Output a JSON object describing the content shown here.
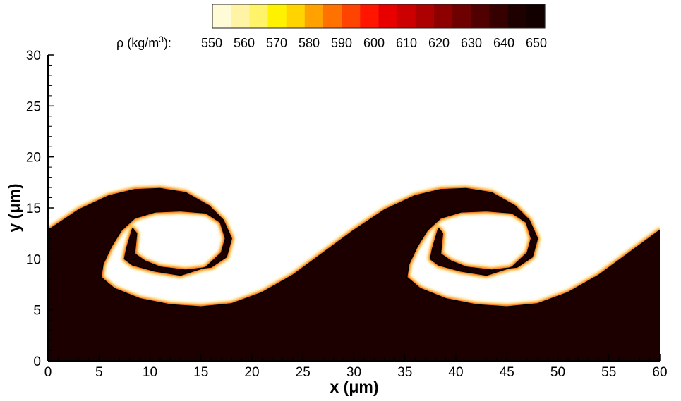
{
  "chart_data": {
    "type": "heatmap",
    "xlabel": "x (μm)",
    "ylabel": "y (μm)",
    "xlim": [
      0,
      60
    ],
    "ylim": [
      0,
      30
    ],
    "x_ticks": [
      0,
      5,
      10,
      15,
      20,
      25,
      30,
      35,
      40,
      45,
      50,
      55,
      60
    ],
    "y_ticks": [
      0,
      5,
      10,
      15,
      20,
      25,
      30
    ],
    "colorbar": {
      "label_prefix": "ρ (kg/m",
      "label_sup": "3",
      "label_suffix": "):",
      "tick_values": [
        550,
        560,
        570,
        580,
        590,
        600,
        610,
        620,
        630,
        640,
        650
      ],
      "range": [
        550,
        650
      ],
      "colors": [
        "#fffbd6",
        "#fff4a6",
        "#fff36a",
        "#fff200",
        "#ffd400",
        "#ffa200",
        "#ff7200",
        "#ff4300",
        "#ff1500",
        "#e80000",
        "#cc0000",
        "#ad0000",
        "#8e0000",
        "#6e0000",
        "#500000",
        "#360000",
        "#1e0000",
        "#120000"
      ]
    },
    "field_color_heavy": "#1c0000",
    "field_color_light": "#ffffff",
    "interface_color": "#000000",
    "interface_period": 30,
    "interface_curve": [
      [
        0,
        12.8
      ],
      [
        3,
        14.8
      ],
      [
        6,
        16.2
      ],
      [
        8.5,
        16.8
      ],
      [
        11,
        16.9
      ],
      [
        13.5,
        16.5
      ],
      [
        15.8,
        15.2
      ],
      [
        17.2,
        13.8
      ],
      [
        18,
        12
      ],
      [
        17.5,
        10.2
      ],
      [
        16,
        9.2
      ],
      [
        13.5,
        8.9
      ],
      [
        11,
        9.2
      ],
      [
        9.5,
        9.8
      ],
      [
        8.5,
        10.5
      ],
      [
        8.7,
        12.5
      ],
      [
        8.3,
        13
      ],
      [
        7.7,
        11
      ],
      [
        7.5,
        10
      ],
      [
        8.3,
        9.4
      ],
      [
        10.5,
        8.8
      ],
      [
        13,
        8.4
      ],
      [
        15.5,
        9.2
      ],
      [
        17,
        10.6
      ],
      [
        17.4,
        12
      ],
      [
        16.9,
        13.6
      ],
      [
        15.5,
        14.5
      ],
      [
        13,
        14.7
      ],
      [
        10.5,
        14.6
      ],
      [
        8.5,
        14
      ],
      [
        7.2,
        12.8
      ],
      [
        6.2,
        11.2
      ],
      [
        5.4,
        9.5
      ],
      [
        5.2,
        8.2
      ],
      [
        6.5,
        7.1
      ],
      [
        9,
        6.1
      ],
      [
        12,
        5.5
      ],
      [
        15,
        5.3
      ],
      [
        18,
        5.6
      ],
      [
        21,
        6.7
      ],
      [
        24,
        8.4
      ],
      [
        27,
        10.6
      ],
      [
        30,
        12.8
      ]
    ]
  }
}
